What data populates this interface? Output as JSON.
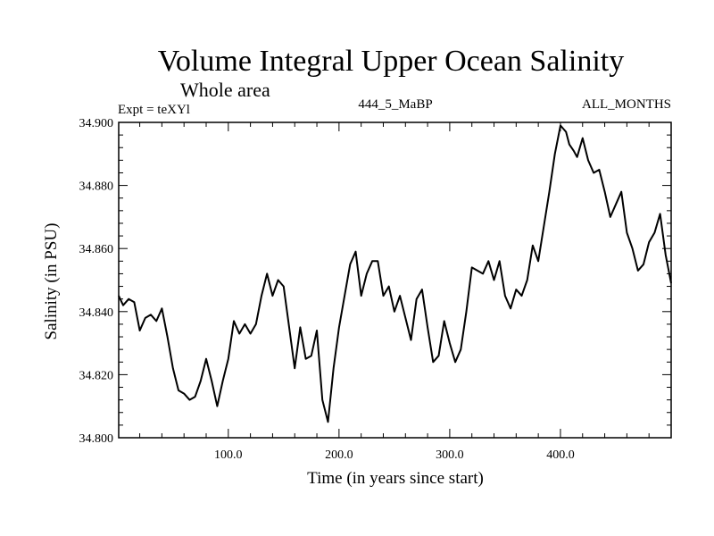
{
  "chart_data": {
    "type": "line",
    "title": "Volume Integral Upper Ocean Salinity",
    "subtitle": "Whole area",
    "annotations": {
      "left": "Expt = teXYl",
      "center": "444_5_MaBP",
      "right": "ALL_MONTHS"
    },
    "xlabel": "Time (in years since start)",
    "ylabel": "Salinity (in PSU)",
    "xlim": [
      1,
      500
    ],
    "ylim": [
      34.8,
      34.9
    ],
    "x_ticks": [
      100,
      200,
      300,
      400
    ],
    "x_tick_labels": [
      "100.0",
      "200.0",
      "300.0",
      "400.0"
    ],
    "y_ticks": [
      34.8,
      34.82,
      34.84,
      34.86,
      34.88,
      34.9
    ],
    "y_tick_labels": [
      "34.800",
      "34.820",
      "34.840",
      "34.860",
      "34.880",
      "34.900"
    ],
    "grid": false,
    "series": [
      {
        "color": "#000000",
        "x": [
          1,
          5,
          10,
          15,
          20,
          25,
          30,
          35,
          40,
          45,
          50,
          55,
          60,
          65,
          70,
          75,
          80,
          85,
          90,
          95,
          100,
          105,
          110,
          115,
          120,
          125,
          130,
          135,
          140,
          145,
          150,
          155,
          160,
          165,
          170,
          175,
          180,
          185,
          190,
          195,
          200,
          205,
          210,
          215,
          220,
          225,
          230,
          235,
          240,
          245,
          250,
          255,
          260,
          265,
          270,
          275,
          280,
          285,
          290,
          295,
          300,
          305,
          310,
          315,
          320,
          325,
          330,
          335,
          340,
          345,
          350,
          355,
          360,
          365,
          370,
          375,
          380,
          385,
          390,
          395,
          400,
          405,
          408,
          412,
          415,
          420,
          425,
          430,
          435,
          440,
          445,
          450,
          455,
          460,
          465,
          470,
          475,
          480,
          485,
          490,
          495,
          500
        ],
        "values": [
          34.845,
          34.842,
          34.844,
          34.843,
          34.834,
          34.838,
          34.839,
          34.837,
          34.841,
          34.832,
          34.822,
          34.815,
          34.814,
          34.812,
          34.813,
          34.818,
          34.825,
          34.818,
          34.81,
          34.818,
          34.825,
          34.837,
          34.833,
          34.836,
          34.833,
          34.836,
          34.845,
          34.852,
          34.845,
          34.85,
          34.848,
          34.835,
          34.822,
          34.835,
          34.825,
          34.826,
          34.834,
          34.812,
          34.805,
          34.822,
          34.835,
          34.845,
          34.855,
          34.859,
          34.845,
          34.852,
          34.856,
          34.856,
          34.845,
          34.848,
          34.84,
          34.845,
          34.838,
          34.831,
          34.844,
          34.847,
          34.835,
          34.824,
          34.826,
          34.837,
          34.83,
          34.824,
          34.828,
          34.84,
          34.854,
          34.853,
          34.852,
          34.856,
          34.85,
          34.856,
          34.845,
          34.841,
          34.847,
          34.845,
          34.85,
          34.861,
          34.856,
          34.867,
          34.878,
          34.89,
          34.899,
          34.897,
          34.893,
          34.891,
          34.889,
          34.895,
          34.888,
          34.884,
          34.885,
          34.878,
          34.87,
          34.874,
          34.878,
          34.865,
          34.86,
          34.853,
          34.855,
          34.862,
          34.865,
          34.871,
          34.858,
          34.849
        ]
      }
    ]
  }
}
